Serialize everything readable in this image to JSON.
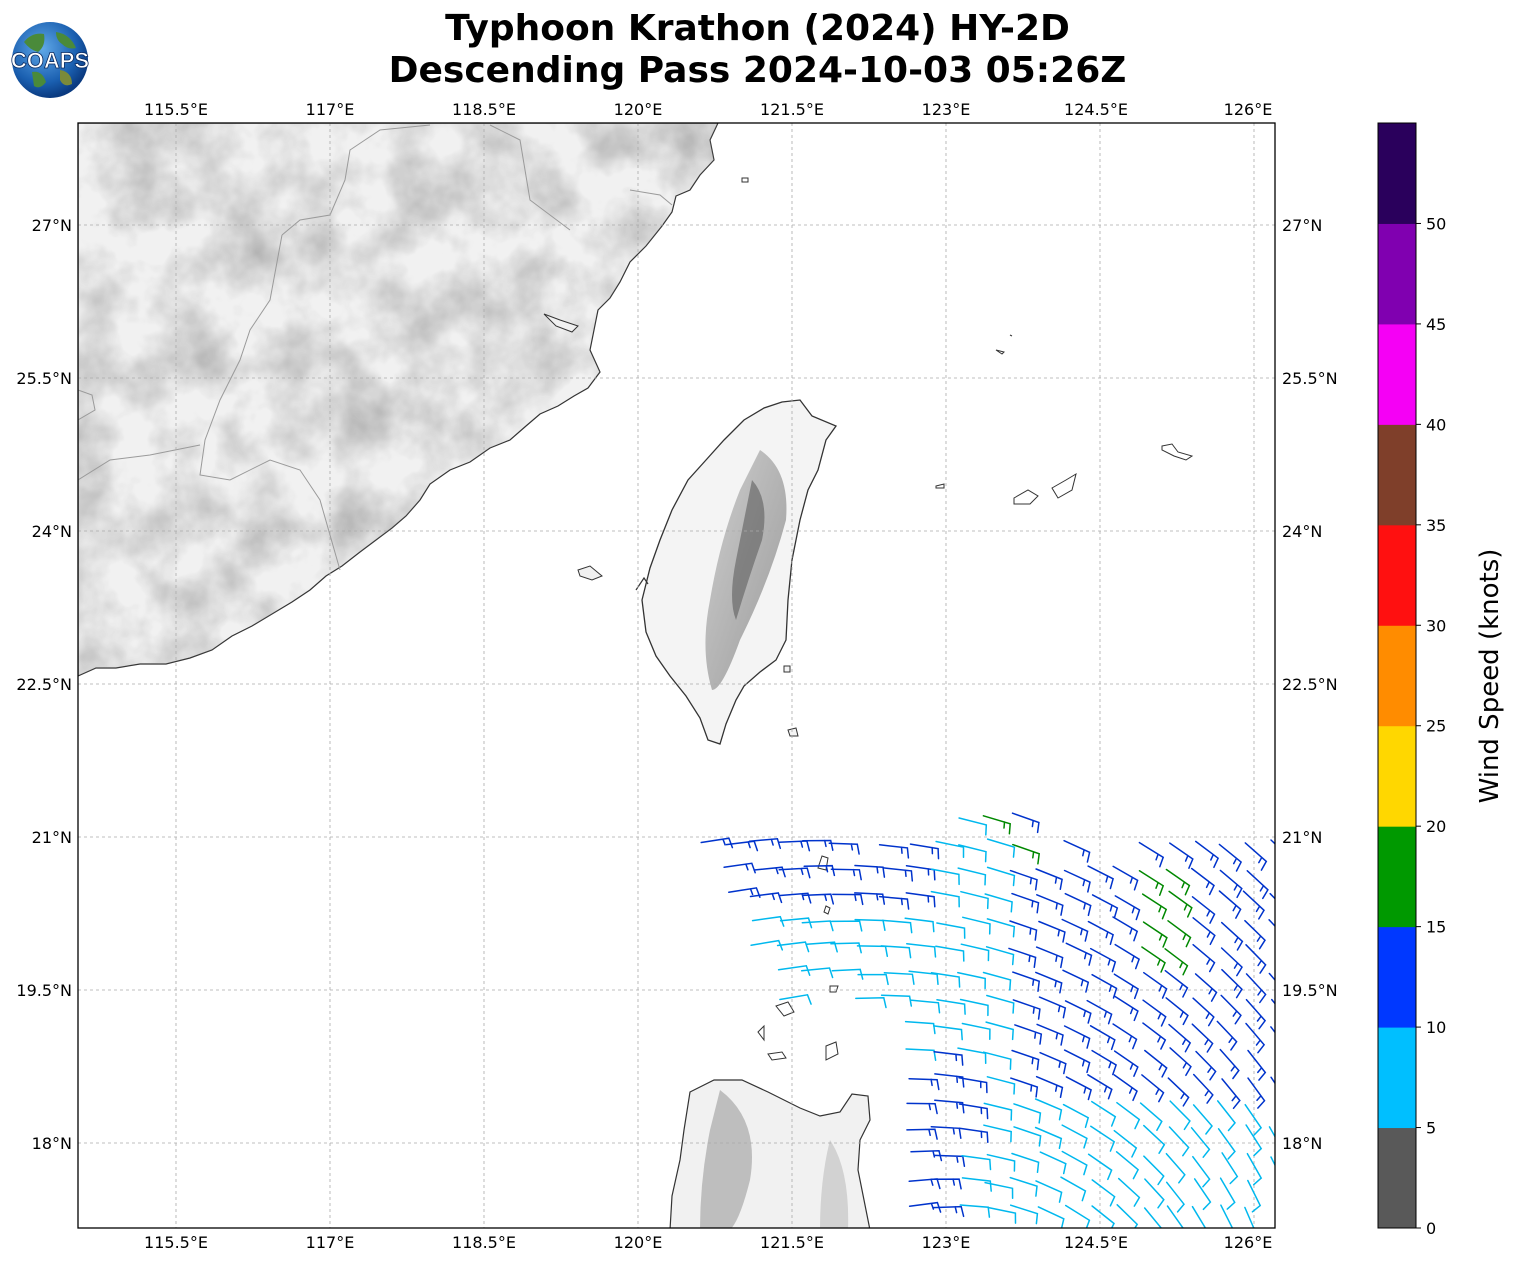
{
  "title_line1": "Typhoon Krathon (2024) HY-2D",
  "title_line2": "Descending Pass 2024-10-03 05:26Z",
  "logo_text": "COAPS",
  "lon_ticks": [
    "115.5°E",
    "117°E",
    "118.5°E",
    "120°E",
    "121.5°E",
    "123°E",
    "124.5°E",
    "126°E"
  ],
  "lat_ticks": [
    "27°N",
    "25.5°N",
    "24°N",
    "22.5°N",
    "21°N",
    "19.5°N",
    "18°N"
  ],
  "colorbar": {
    "label": "Wind Speed (knots)",
    "ticks": [
      "0",
      "5",
      "10",
      "15",
      "20",
      "25",
      "30",
      "35",
      "40",
      "45",
      "50"
    ],
    "colors": [
      "#595959",
      "#00bfff",
      "#0038ff",
      "#009900",
      "#ffd700",
      "#ff8c00",
      "#ff1010",
      "#7f3f2a",
      "#f500f5",
      "#8000b0",
      "#2a005c"
    ]
  },
  "barb_colors": {
    "light": "#00b8ee",
    "blue": "#0033cc",
    "green": "#008800"
  }
}
